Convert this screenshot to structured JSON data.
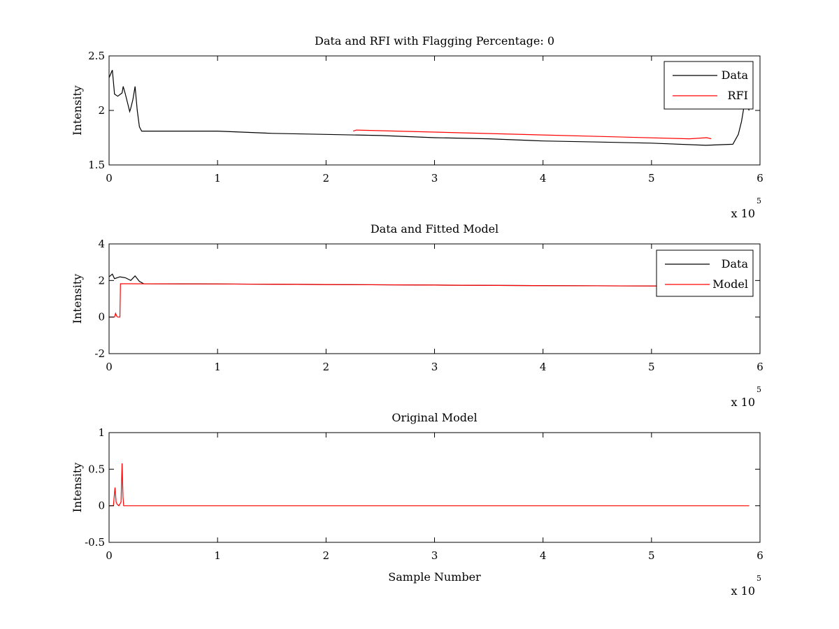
{
  "chart_data": [
    {
      "type": "line",
      "title": "Data and RFI with Flagging Percentage: 0",
      "xlabel": "",
      "ylabel": "Intensity",
      "xlim": [
        0,
        600000
      ],
      "ylim": [
        1.5,
        2.5
      ],
      "x_ticks": [
        0,
        1,
        2,
        3,
        4,
        5,
        6
      ],
      "y_ticks": [
        1.5,
        2,
        2.5
      ],
      "x_multiplier": {
        "base": "x 10",
        "exponent": "5"
      },
      "legend": {
        "position": "top-right",
        "entries": [
          "Data",
          "RFI"
        ]
      },
      "colors": {
        "Data": "#000000",
        "RFI": "#ff0000"
      },
      "series": [
        {
          "name": "Data",
          "x": [
            0,
            3000,
            5000,
            8000,
            12000,
            13000,
            15000,
            19000,
            20000,
            22000,
            24000,
            26000,
            28000,
            30000,
            40000,
            60000,
            100000,
            150000,
            200000,
            250000,
            300000,
            350000,
            400000,
            450000,
            500000,
            550000,
            575000,
            580000,
            583000,
            586000,
            590000
          ],
          "y": [
            2.3,
            2.37,
            2.15,
            2.13,
            2.16,
            2.22,
            2.15,
            1.99,
            2.02,
            2.1,
            2.22,
            2.0,
            1.85,
            1.81,
            1.81,
            1.81,
            1.81,
            1.79,
            1.78,
            1.77,
            1.75,
            1.74,
            1.72,
            1.71,
            1.7,
            1.68,
            1.69,
            1.78,
            1.9,
            2.08,
            2.0
          ]
        },
        {
          "name": "RFI",
          "x": [
            225000,
            228000,
            535000,
            551000,
            555000
          ],
          "y": [
            1.81,
            1.82,
            1.74,
            1.75,
            1.74
          ]
        }
      ]
    },
    {
      "type": "line",
      "title": "Data and Fitted Model",
      "xlabel": "",
      "ylabel": "Intensity",
      "xlim": [
        0,
        600000
      ],
      "ylim": [
        -2,
        4
      ],
      "x_ticks": [
        0,
        1,
        2,
        3,
        4,
        5,
        6
      ],
      "y_ticks": [
        -2,
        0,
        2,
        4
      ],
      "x_multiplier": {
        "base": "x 10",
        "exponent": "5"
      },
      "legend": {
        "position": "top-right",
        "entries": [
          "Data",
          "Model"
        ]
      },
      "colors": {
        "Data": "#000000",
        "Model": "#ff0000"
      },
      "series": [
        {
          "name": "Data",
          "x": [
            0,
            3000,
            5000,
            10000,
            15000,
            20000,
            24000,
            28000,
            32000,
            100000,
            200000,
            300000,
            400000,
            500000,
            590000
          ],
          "y": [
            2.2,
            2.35,
            2.1,
            2.2,
            2.15,
            2.0,
            2.25,
            1.95,
            1.82,
            1.81,
            1.78,
            1.75,
            1.72,
            1.7,
            1.68
          ]
        },
        {
          "name": "Model",
          "x": [
            0,
            5000,
            6000,
            7000,
            8000,
            10000,
            10500,
            12000,
            100000,
            200000,
            300000,
            400000,
            500000,
            590000
          ],
          "y": [
            0.0,
            0.0,
            0.2,
            0.05,
            0.0,
            0.0,
            1.82,
            1.82,
            1.81,
            1.78,
            1.75,
            1.72,
            1.7,
            1.68
          ]
        }
      ]
    },
    {
      "type": "line",
      "title": "Original Model",
      "xlabel": "Sample Number",
      "ylabel": "Intensity",
      "xlim": [
        0,
        600000
      ],
      "ylim": [
        -0.5,
        1
      ],
      "x_ticks": [
        0,
        1,
        2,
        3,
        4,
        5,
        6
      ],
      "y_ticks": [
        -0.5,
        0,
        0.5,
        1
      ],
      "x_multiplier": {
        "base": "x 10",
        "exponent": "5"
      },
      "legend": null,
      "colors": {
        "Model": "#ff0000"
      },
      "series": [
        {
          "name": "",
          "x": [
            0,
            4000,
            5500,
            6500,
            7500,
            9000,
            11000,
            12000,
            12800,
            13500,
            15000,
            100000,
            590000
          ],
          "y": [
            0,
            0.0,
            0.25,
            0.05,
            0.02,
            0.0,
            0.05,
            0.58,
            0.12,
            0.0,
            0.0,
            0.0,
            0.0
          ]
        }
      ]
    }
  ]
}
